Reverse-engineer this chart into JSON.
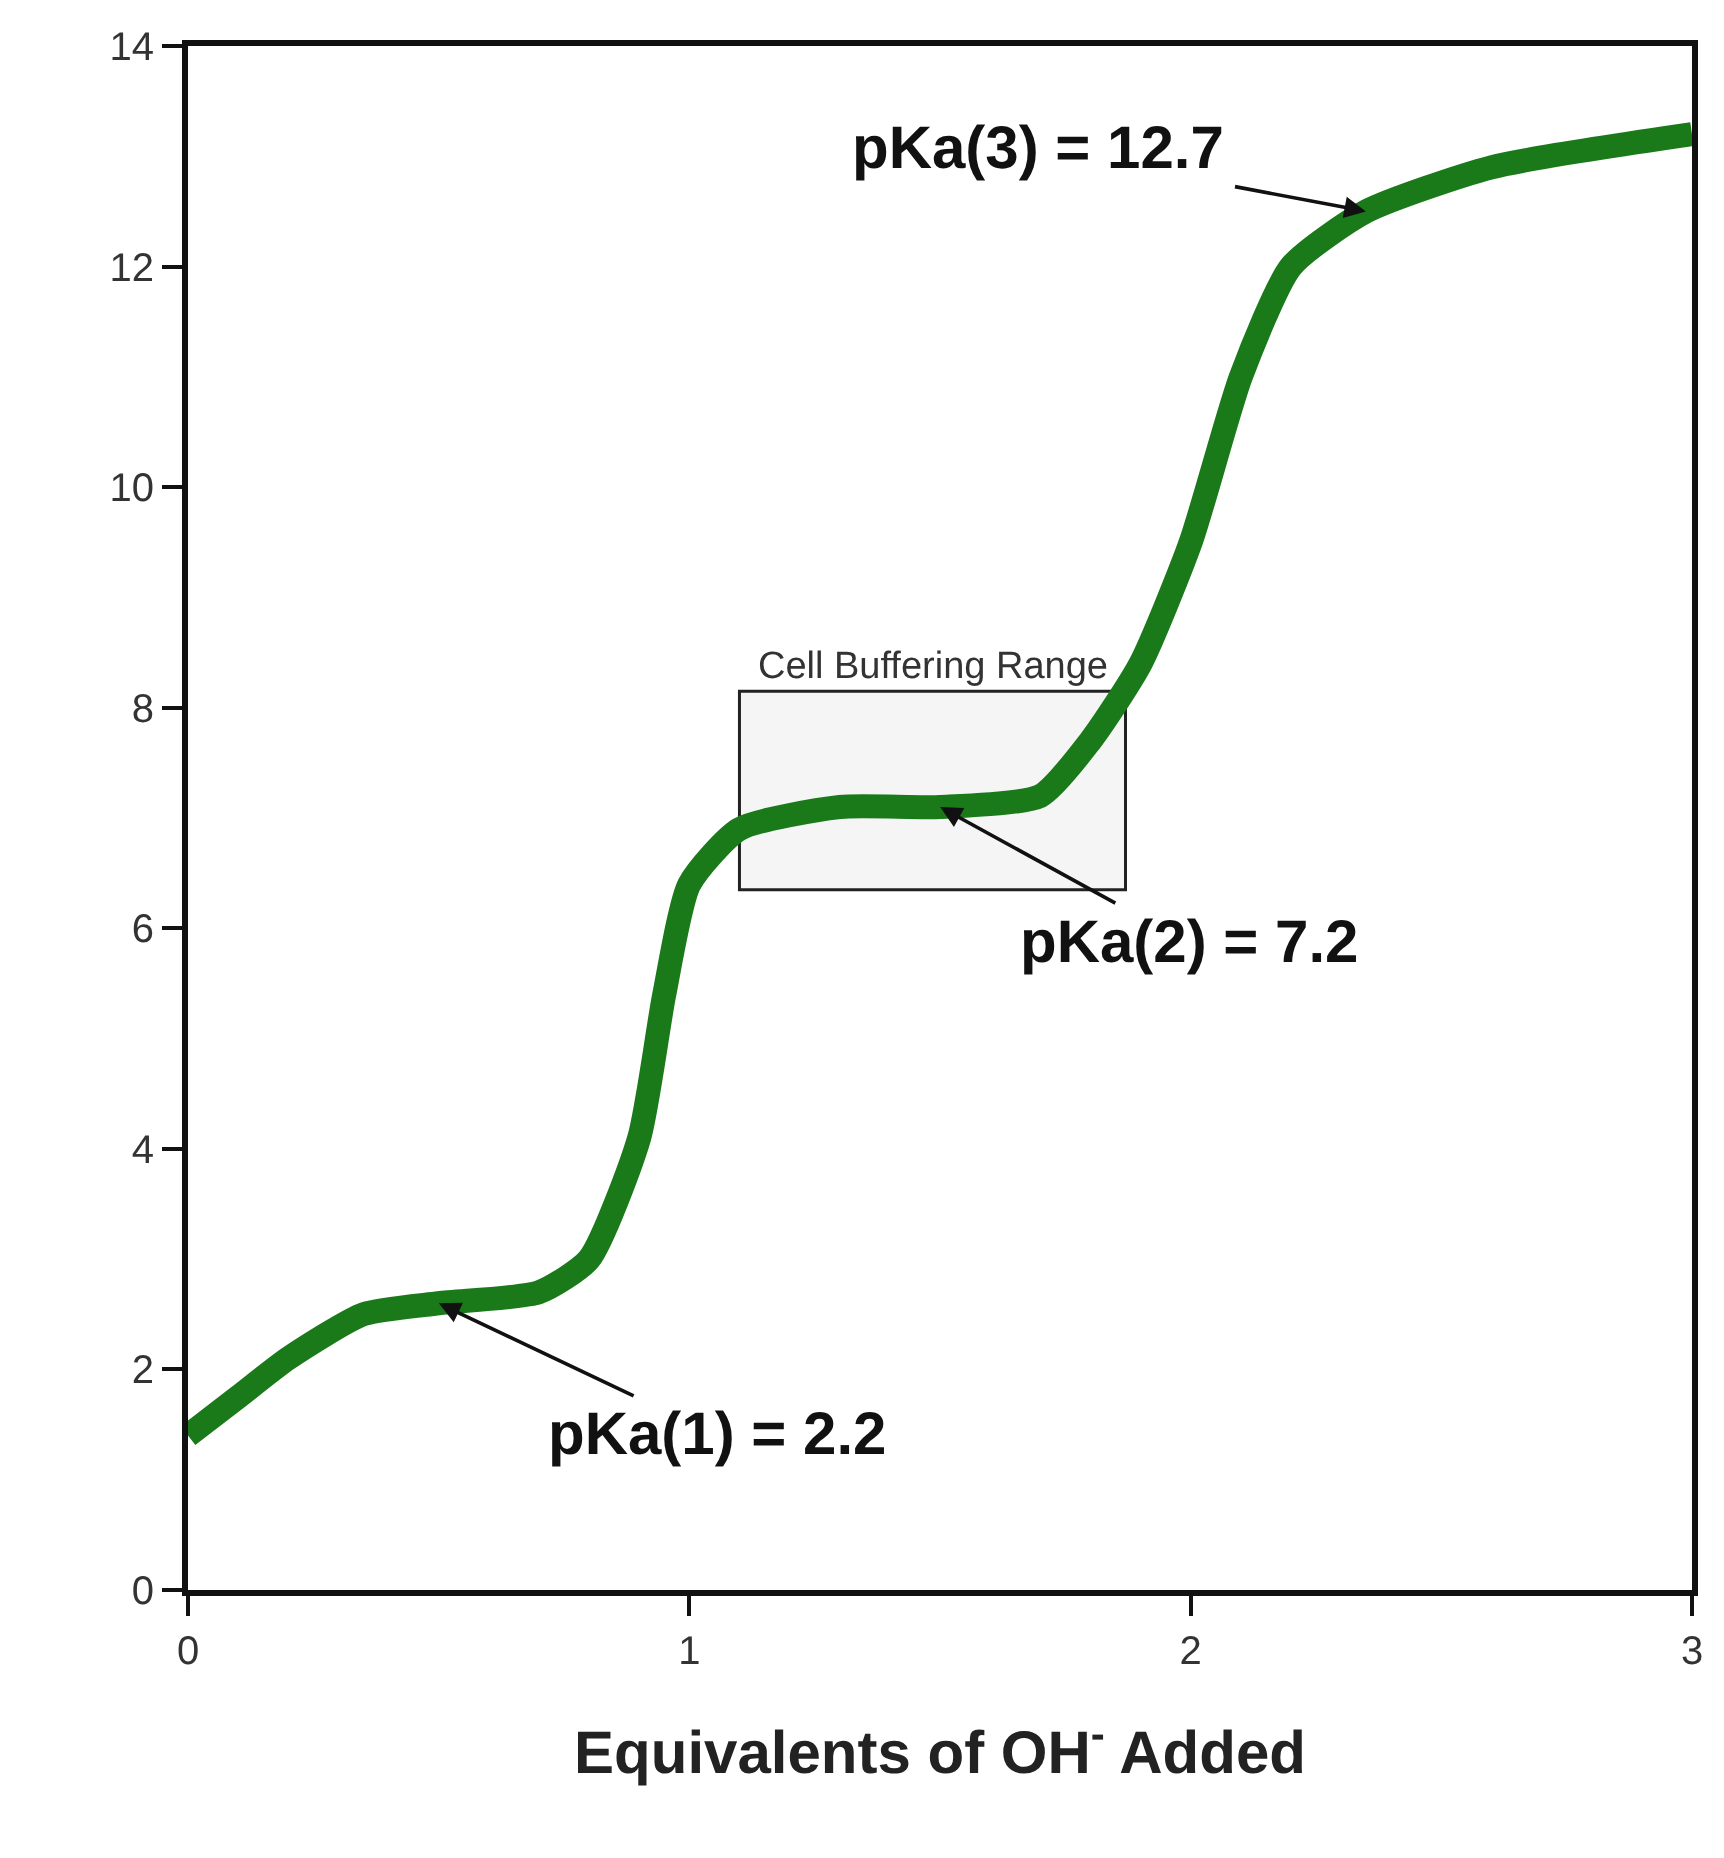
{
  "chart_data": {
    "type": "line",
    "xlabel": "Equivalents of OH$^{-}$ Added",
    "x": [
      0,
      0.1,
      0.2,
      0.35,
      0.5,
      0.7,
      0.8,
      0.9,
      0.95,
      1.0,
      1.1,
      1.3,
      1.5,
      1.7,
      1.8,
      1.9,
      2.0,
      2.1,
      2.2,
      2.35,
      2.6,
      3.0
    ],
    "series": [
      {
        "color": "#1a7a1a",
        "values": [
          1.4,
          1.75,
          2.1,
          2.5,
          2.6,
          2.7,
          3.0,
          4.1,
          5.4,
          6.4,
          6.9,
          7.1,
          7.1,
          7.2,
          7.7,
          8.4,
          9.5,
          11.0,
          12.0,
          12.5,
          12.9,
          13.2
        ]
      }
    ],
    "xlim": [
      0,
      3
    ],
    "xticks": [
      0,
      1,
      2,
      3
    ],
    "ylim": [
      0,
      14
    ],
    "yticks": [
      0,
      2,
      4,
      6,
      8,
      10,
      12,
      14
    ],
    "grid": false,
    "marker": "none",
    "line_style": "solid",
    "bands": [
      {
        "axis": "x",
        "from": 1.1,
        "to": 1.87,
        "label": "Cell Buffering Range"
      }
    ],
    "annotations": [
      {
        "text": "pKa(1) = 2.2",
        "x": 0.5,
        "y": 2.6
      },
      {
        "text": "pKa(2) = 7.2",
        "x": 1.5,
        "y": 7.1
      },
      {
        "text": "pKa(3) = 12.7",
        "x": 2.35,
        "y": 12.5
      }
    ]
  }
}
